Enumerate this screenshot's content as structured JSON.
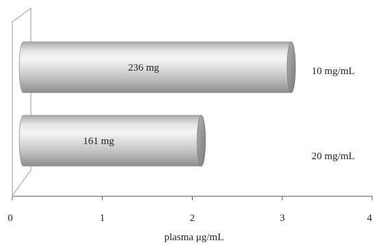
{
  "chart_data": {
    "type": "bar",
    "orientation": "horizontal",
    "style": "3d-cylinder",
    "categories": [
      "10 mg/mL",
      "20 mg/mL"
    ],
    "values": [
      3.1,
      2.1
    ],
    "data_labels": [
      "236 mg",
      "161 mg"
    ],
    "xlabel": "plasma μg/mL",
    "xlim": [
      0,
      4
    ],
    "xticks": [
      "0",
      "1",
      "2",
      "3",
      "4"
    ],
    "grid": false,
    "legend": "none",
    "bar_color": "#c8c8c8"
  }
}
